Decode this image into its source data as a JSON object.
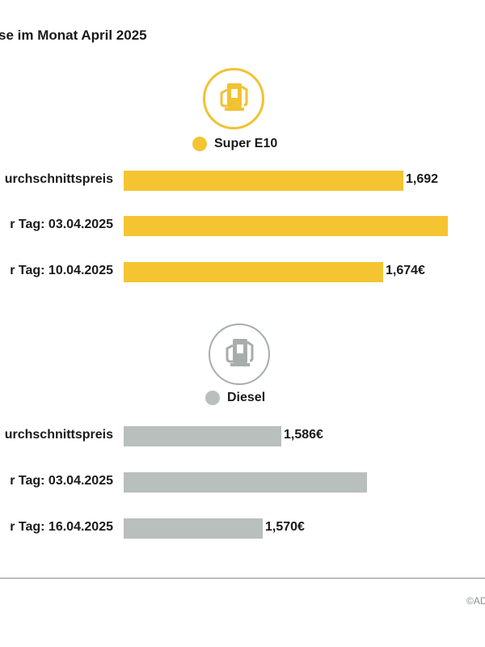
{
  "title": "se im Monat April 2025",
  "colors": {
    "super_e10": "#f5c431",
    "diesel": "#b8bfbd",
    "super_e10_icon": "#f1c232",
    "diesel_icon": "#a7adab"
  },
  "icons": {
    "super_e10": "fuel-pump-icon",
    "diesel": "fuel-pump-icon"
  },
  "credit": "©AD",
  "chart_data": [
    {
      "type": "bar",
      "orientation": "horizontal",
      "legend": "Super E10",
      "categories": [
        "urchschnittspreis",
        "r Tag: 03.04.2025",
        "r Tag: 10.04.2025"
      ],
      "values": [
        1.692,
        1.73,
        1.674
      ],
      "value_labels": [
        "1,692",
        "",
        "1,674€"
      ],
      "xlim": [
        1.45,
        1.73
      ]
    },
    {
      "type": "bar",
      "orientation": "horizontal",
      "legend": "Diesel",
      "categories": [
        "urchschnittspreis",
        "r Tag: 03.04.2025",
        "r Tag: 16.04.2025"
      ],
      "values": [
        1.586,
        1.66,
        1.57
      ],
      "value_labels": [
        "1,586€",
        "",
        "1,570€"
      ],
      "xlim": [
        1.45,
        1.73
      ]
    }
  ]
}
